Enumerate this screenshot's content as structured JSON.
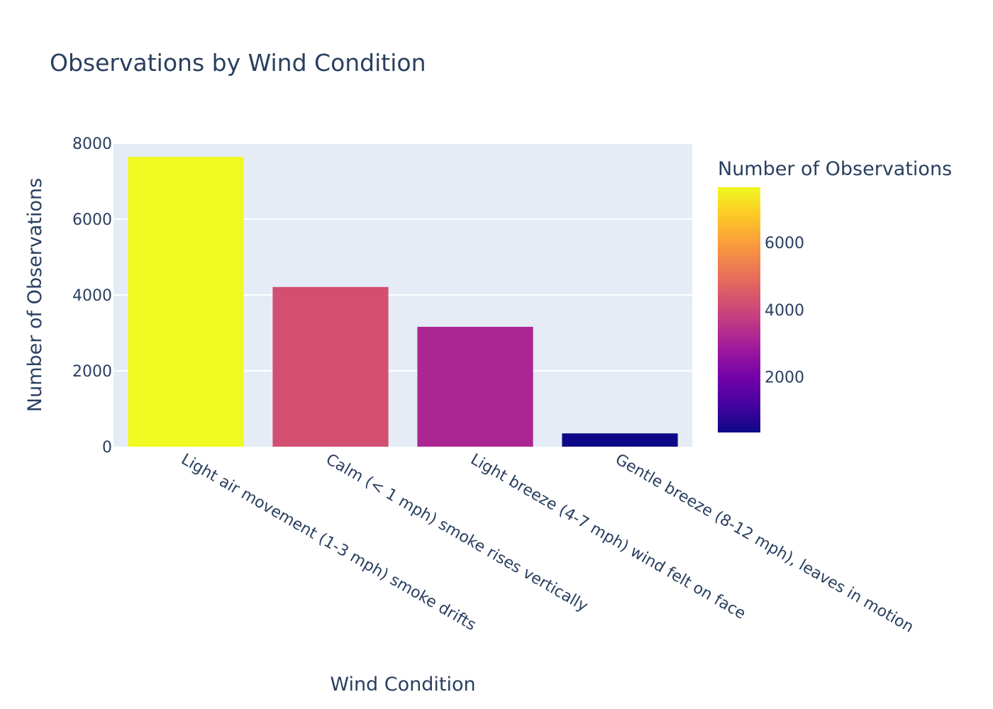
{
  "chart_data": {
    "type": "bar",
    "title": "Observations by Wind Condition",
    "xlabel": "Wind Condition",
    "ylabel": "Number of Observations",
    "categories": [
      "Light air movement (1-3 mph) smoke drifts",
      "Calm (< 1 mph) smoke rises vertically",
      "Light breeze (4-7 mph) wind felt on face",
      "Gentle breeze (8-12 mph), leaves in motion"
    ],
    "values": [
      7640,
      4210,
      3160,
      350
    ],
    "ylim": [
      0,
      8000
    ],
    "yticks": [
      0,
      2000,
      4000,
      6000,
      8000
    ],
    "grid": true,
    "colorbar": {
      "title": "Number of Observations",
      "range": [
        350,
        7640
      ],
      "ticks": [
        2000,
        4000,
        6000
      ],
      "colorscale": "plasma"
    },
    "colors": {
      "plot_background": "#e5ecf6",
      "gridline": "#ffffff",
      "text": "#2a3f5f"
    }
  }
}
